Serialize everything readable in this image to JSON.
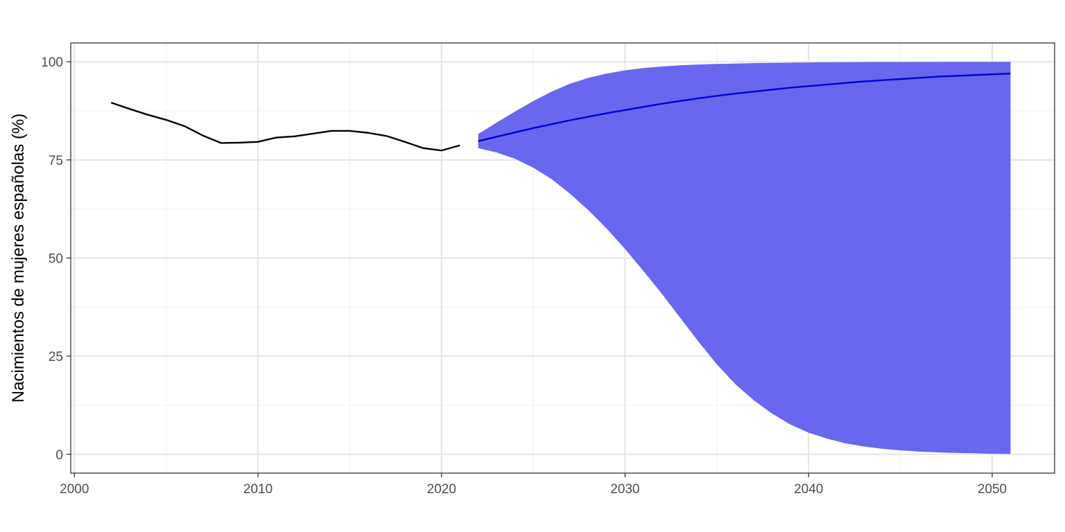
{
  "chart_data": {
    "type": "line",
    "title": "",
    "xlabel": "",
    "ylabel": "Nacimientos de mujeres españolas (%)",
    "xlim": [
      1999.8,
      2053.4
    ],
    "ylim": [
      -4.8,
      104.8
    ],
    "x_ticks": [
      2000,
      2010,
      2020,
      2030,
      2040,
      2050
    ],
    "x_tick_labels": [
      "2000",
      "2010",
      "2020",
      "2030",
      "2040",
      "2050"
    ],
    "y_ticks": [
      0,
      25,
      50,
      75,
      100
    ],
    "y_tick_labels": [
      "0",
      "25",
      "50",
      "75",
      "100"
    ],
    "grid": true,
    "legend": "none",
    "colors": {
      "observed_line": "#000000",
      "forecast_line": "#0000cd",
      "forecast_band": "#6a66ed",
      "grid_major": "#e5e5e5",
      "grid_minor": "#f0f0f0",
      "panel_border": "#333333"
    },
    "series": [
      {
        "role": "observed",
        "x": [
          2002,
          2003,
          2004,
          2005,
          2006,
          2007,
          2008,
          2009,
          2010,
          2011,
          2012,
          2013,
          2014,
          2015,
          2016,
          2017,
          2018,
          2019,
          2020,
          2021
        ],
        "values": [
          89.6,
          88.0,
          86.5,
          85.2,
          83.6,
          81.2,
          79.3,
          79.4,
          79.6,
          80.7,
          81.0,
          81.7,
          82.4,
          82.4,
          81.9,
          81.1,
          79.6,
          78.0,
          77.4,
          78.7
        ]
      },
      {
        "role": "forecast",
        "x": [
          2022,
          2023,
          2024,
          2025,
          2026,
          2027,
          2028,
          2029,
          2030,
          2031,
          2032,
          2033,
          2034,
          2035,
          2036,
          2037,
          2038,
          2039,
          2040,
          2041,
          2042,
          2043,
          2044,
          2045,
          2046,
          2047,
          2048,
          2049,
          2050,
          2051
        ],
        "values": [
          79.8,
          80.9,
          82.0,
          83.1,
          84.1,
          85.1,
          86.0,
          86.9,
          87.7,
          88.5,
          89.3,
          90.0,
          90.7,
          91.3,
          91.9,
          92.4,
          92.9,
          93.4,
          93.8,
          94.2,
          94.6,
          95.0,
          95.3,
          95.6,
          95.9,
          96.2,
          96.4,
          96.6,
          96.8,
          97.0
        ],
        "lower": [
          78.0,
          76.9,
          75.3,
          73.0,
          70.1,
          66.4,
          62.2,
          57.5,
          52.3,
          46.7,
          40.9,
          34.8,
          28.7,
          22.9,
          17.9,
          13.8,
          10.4,
          7.6,
          5.5,
          4.0,
          2.8,
          2.0,
          1.4,
          1.0,
          0.7,
          0.5,
          0.35,
          0.25,
          0.15,
          0.1
        ],
        "upper": [
          81.6,
          84.5,
          87.3,
          90.0,
          92.4,
          94.4,
          95.9,
          97.0,
          97.8,
          98.4,
          98.8,
          99.1,
          99.3,
          99.45,
          99.55,
          99.65,
          99.72,
          99.78,
          99.83,
          99.87,
          99.9,
          99.92,
          99.94,
          99.95,
          99.96,
          99.97,
          99.98,
          99.99,
          99.99,
          100.0
        ]
      }
    ]
  }
}
